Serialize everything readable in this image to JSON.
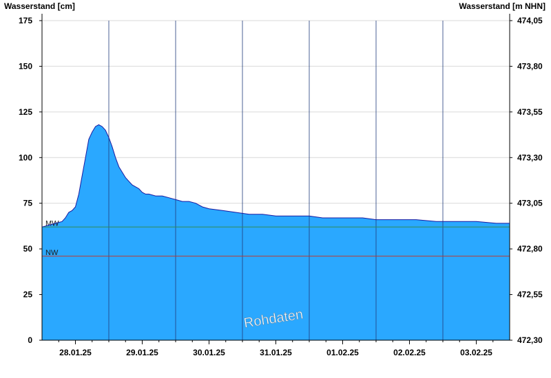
{
  "chart_data": {
    "type": "area",
    "ylabel": "Wasserstand [cm]",
    "ylabel_right": "Wasserstand [m NHN]",
    "ylim": [
      0,
      175
    ],
    "yticks": [
      0,
      25,
      50,
      75,
      100,
      125,
      150,
      175
    ],
    "yticks_right": [
      "472,30",
      "472,55",
      "472,80",
      "473,05",
      "473,30",
      "473,55",
      "473,80",
      "474,05"
    ],
    "xlim_days": [
      0,
      7
    ],
    "xtick_labels": [
      "28.01.25",
      "29.01.25",
      "30.01.25",
      "31.01.25",
      "01.02.25",
      "02.02.25",
      "03.02.25"
    ],
    "grid": true,
    "watermark": "Rohdaten",
    "reference_lines": [
      {
        "label": "MW",
        "value": 62,
        "color": "#2e8b57"
      },
      {
        "label": "NW",
        "value": 46,
        "color": "#c0392b"
      }
    ],
    "series": [
      {
        "values": [
          [
            0.0,
            62
          ],
          [
            0.1,
            63
          ],
          [
            0.2,
            64
          ],
          [
            0.3,
            65
          ],
          [
            0.35,
            67
          ],
          [
            0.4,
            70
          ],
          [
            0.45,
            71
          ],
          [
            0.5,
            73
          ],
          [
            0.55,
            80
          ],
          [
            0.6,
            90
          ],
          [
            0.65,
            100
          ],
          [
            0.7,
            110
          ],
          [
            0.75,
            114
          ],
          [
            0.8,
            117
          ],
          [
            0.85,
            118
          ],
          [
            0.9,
            117
          ],
          [
            0.95,
            115
          ],
          [
            1.0,
            111
          ],
          [
            1.05,
            106
          ],
          [
            1.1,
            100
          ],
          [
            1.15,
            95
          ],
          [
            1.2,
            92
          ],
          [
            1.25,
            89
          ],
          [
            1.3,
            87
          ],
          [
            1.35,
            85
          ],
          [
            1.4,
            84
          ],
          [
            1.45,
            83
          ],
          [
            1.5,
            81
          ],
          [
            1.55,
            80
          ],
          [
            1.6,
            80
          ],
          [
            1.7,
            79
          ],
          [
            1.8,
            79
          ],
          [
            1.9,
            78
          ],
          [
            2.0,
            77
          ],
          [
            2.1,
            76
          ],
          [
            2.2,
            76
          ],
          [
            2.3,
            75
          ],
          [
            2.4,
            73
          ],
          [
            2.5,
            72
          ],
          [
            2.7,
            71
          ],
          [
            2.9,
            70
          ],
          [
            3.1,
            69
          ],
          [
            3.3,
            69
          ],
          [
            3.5,
            68
          ],
          [
            3.8,
            68
          ],
          [
            4.0,
            68
          ],
          [
            4.2,
            67
          ],
          [
            4.5,
            67
          ],
          [
            4.8,
            67
          ],
          [
            5.0,
            66
          ],
          [
            5.3,
            66
          ],
          [
            5.6,
            66
          ],
          [
            5.9,
            65
          ],
          [
            6.2,
            65
          ],
          [
            6.5,
            65
          ],
          [
            6.8,
            64
          ],
          [
            7.0,
            64
          ]
        ]
      }
    ]
  },
  "colors": {
    "fill": "#2aa8ff",
    "line": "#1a1aa0",
    "grid": "#d9d9d9",
    "day_line": "#1f3b7a"
  }
}
